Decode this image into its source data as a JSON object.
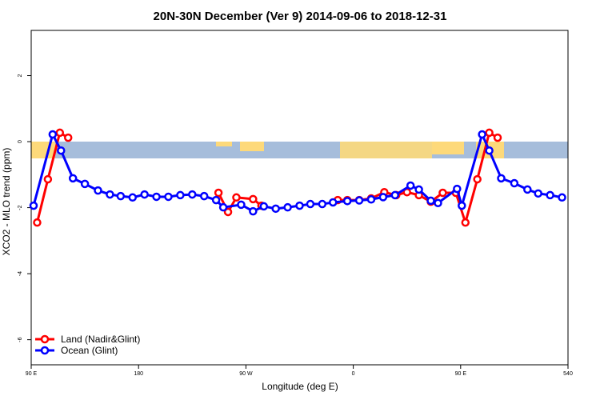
{
  "chart_data": {
    "type": "line",
    "title": "20N-30N December (Ver 9)   2014-09-06 to 2018-12-31",
    "x_label": "Longitude (deg E)",
    "y_label": "XCO2 - MLO trend (ppm)",
    "xlim": [
      90,
      540
    ],
    "ylim": [
      -6.76,
      3.37
    ],
    "xticks": [
      {
        "value": 90,
        "label": "90 E"
      },
      180,
      {
        "value": 270,
        "label": "90 W"
      },
      {
        "value": 360,
        "label": "0"
      },
      {
        "value": 450,
        "label": "90 E"
      },
      540
    ],
    "yticks": [
      -6,
      -4,
      -2,
      0,
      2
    ],
    "legend": "bottom-left",
    "series": [
      {
        "name": "Land (Nadir&Glint)",
        "color": "#ff0000",
        "x": [
          95,
          104,
          114,
          121,
          185,
          247,
          255,
          262,
          276,
          283,
          315,
          347,
          355,
          365,
          375,
          386,
          396,
          405,
          415,
          425,
          435,
          446,
          454,
          464,
          474,
          481
        ],
        "values": [
          -2.45,
          -1.14,
          0.27,
          0.12,
          null,
          -1.55,
          -2.13,
          -1.69,
          -1.74,
          -1.94,
          null,
          -1.77,
          -1.77,
          -1.77,
          -1.72,
          -1.53,
          -1.62,
          -1.53,
          -1.62,
          -1.82,
          -1.55,
          -1.55,
          -2.45,
          -1.14,
          0.27,
          0.12
        ]
      },
      {
        "name": "Ocean (Glint)",
        "color": "#0000ff",
        "x": [
          92,
          108,
          115,
          125,
          135,
          146,
          156,
          165,
          175,
          185,
          195,
          205,
          215,
          225,
          235,
          245,
          251,
          266,
          276,
          285,
          295,
          305,
          315,
          324,
          334,
          343,
          355,
          365,
          375,
          385,
          395,
          408,
          415,
          425,
          431,
          447,
          451,
          468,
          474,
          484,
          495,
          506,
          515,
          525,
          535
        ],
        "values": [
          -1.94,
          0.22,
          -0.27,
          -1.11,
          -1.28,
          -1.48,
          -1.6,
          -1.65,
          -1.69,
          -1.6,
          -1.67,
          -1.67,
          -1.62,
          -1.6,
          -1.65,
          -1.77,
          -1.99,
          -1.91,
          -2.11,
          -1.96,
          -2.03,
          -1.99,
          -1.94,
          -1.89,
          -1.89,
          -1.84,
          -1.8,
          -1.78,
          -1.75,
          -1.68,
          -1.62,
          -1.33,
          -1.45,
          -1.79,
          -1.86,
          -1.43,
          -1.94,
          0.22,
          -0.27,
          -1.11,
          -1.26,
          -1.45,
          -1.57,
          -1.62,
          -1.69
        ]
      }
    ]
  }
}
